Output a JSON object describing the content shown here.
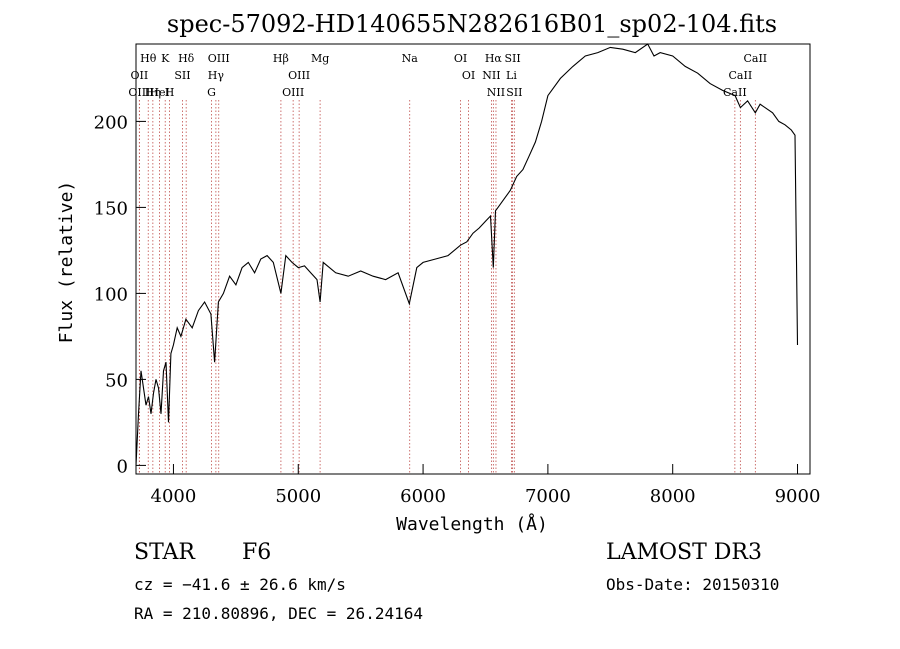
{
  "chart_data": {
    "type": "line",
    "title": "spec-57092-HD140655N282616B01_sp02-104.fits",
    "xlabel": "Wavelength (Å)",
    "ylabel": "Flux (relative)",
    "xlim": [
      3700,
      9100
    ],
    "ylim": [
      -5,
      245
    ],
    "x_ticks": [
      4000,
      5000,
      6000,
      7000,
      8000,
      9000
    ],
    "y_ticks": [
      0,
      50,
      100,
      150,
      200
    ],
    "series": [
      {
        "name": "flux",
        "x": [
          3700,
          3720,
          3740,
          3760,
          3780,
          3800,
          3820,
          3840,
          3860,
          3880,
          3900,
          3920,
          3940,
          3960,
          3980,
          4000,
          4030,
          4060,
          4100,
          4150,
          4200,
          4250,
          4300,
          4330,
          4360,
          4400,
          4450,
          4500,
          4550,
          4600,
          4650,
          4700,
          4750,
          4800,
          4861,
          4900,
          4950,
          5000,
          5050,
          5100,
          5150,
          5175,
          5200,
          5300,
          5400,
          5500,
          5600,
          5700,
          5800,
          5890,
          5950,
          6000,
          6100,
          6200,
          6300,
          6350,
          6400,
          6450,
          6500,
          6540,
          6563,
          6580,
          6600,
          6650,
          6700,
          6750,
          6800,
          6850,
          6900,
          6950,
          7000,
          7100,
          7200,
          7300,
          7400,
          7500,
          7600,
          7700,
          7800,
          7850,
          7900,
          8000,
          8100,
          8200,
          8300,
          8400,
          8500,
          8542,
          8600,
          8662,
          8700,
          8800,
          8850,
          8900,
          8950,
          8980,
          9000
        ],
        "y": [
          0,
          30,
          55,
          45,
          35,
          40,
          30,
          42,
          50,
          45,
          30,
          55,
          60,
          25,
          65,
          70,
          80,
          75,
          85,
          80,
          90,
          95,
          88,
          60,
          95,
          100,
          110,
          105,
          115,
          118,
          112,
          120,
          122,
          118,
          100,
          122,
          118,
          115,
          116,
          112,
          108,
          95,
          118,
          112,
          110,
          113,
          110,
          108,
          112,
          94,
          115,
          118,
          120,
          122,
          128,
          130,
          135,
          138,
          142,
          145,
          115,
          148,
          150,
          155,
          160,
          168,
          172,
          180,
          188,
          200,
          215,
          225,
          232,
          238,
          240,
          243,
          242,
          240,
          245,
          238,
          240,
          238,
          232,
          228,
          222,
          218,
          215,
          208,
          212,
          205,
          210,
          205,
          200,
          198,
          195,
          192,
          70
        ]
      }
    ],
    "line_annotations": [
      {
        "label": "Hθ",
        "wavelength": 3798
      },
      {
        "label": "OII",
        "wavelength": 3727
      },
      {
        "label": "OIII",
        "wavelength": 3727
      },
      {
        "label": "K",
        "wavelength": 3934
      },
      {
        "label": "HeI",
        "wavelength": 3889
      },
      {
        "label": "Hη",
        "wavelength": 3835
      },
      {
        "label": "Hδ",
        "wavelength": 4102
      },
      {
        "label": "SII",
        "wavelength": 4072
      },
      {
        "label": "H",
        "wavelength": 3969
      },
      {
        "label": "OIII",
        "wavelength": 4363
      },
      {
        "label": "Hγ",
        "wavelength": 4340
      },
      {
        "label": "G",
        "wavelength": 4305
      },
      {
        "label": "Hβ",
        "wavelength": 4861
      },
      {
        "label": "OIII",
        "wavelength": 5007
      },
      {
        "label": "OIII",
        "wavelength": 4959
      },
      {
        "label": "Mg",
        "wavelength": 5175
      },
      {
        "label": "Na",
        "wavelength": 5893
      },
      {
        "label": "OI",
        "wavelength": 6300
      },
      {
        "label": "OI",
        "wavelength": 6364
      },
      {
        "label": "Hα",
        "wavelength": 6563
      },
      {
        "label": "NII",
        "wavelength": 6548
      },
      {
        "label": "NII",
        "wavelength": 6584
      },
      {
        "label": "SII",
        "wavelength": 6717
      },
      {
        "label": "Li",
        "wavelength": 6708
      },
      {
        "label": "SII",
        "wavelength": 6731
      },
      {
        "label": "CaII",
        "wavelength": 8662
      },
      {
        "label": "CaII",
        "wavelength": 8542
      },
      {
        "label": "CaII",
        "wavelength": 8498
      }
    ]
  },
  "info": {
    "class": "STAR",
    "subclass": "F6",
    "survey": "LAMOST DR3",
    "cz": "cz = −41.6 ± 26.6 km/s",
    "obs_date": "Obs-Date: 20150310",
    "radec": "RA = 210.80896, DEC =  26.24164"
  },
  "colors": {
    "axis": "#000000",
    "line": "#000000",
    "marker": "#c0504d"
  }
}
